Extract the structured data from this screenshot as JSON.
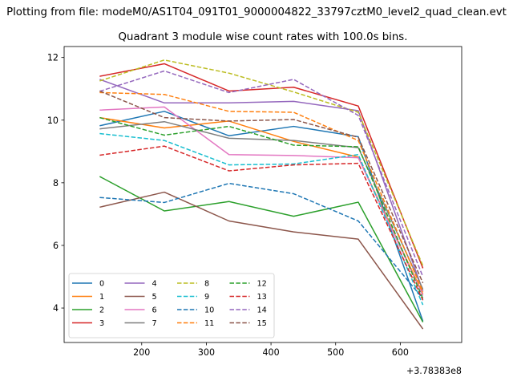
{
  "figure": {
    "suptitle": "Plotting from file: modeM0/AS1T04_091T01_9000004822_33797cztM0_level2_quad_clean.evt",
    "background": "#ffffff"
  },
  "chart_data": {
    "type": "line",
    "title": "Quadrant 3 module wise count rates with 100.0s bins.",
    "xlabel": "",
    "ylabel": "",
    "x_offset_label": "+3.78383e8",
    "x": [
      135,
      235,
      335,
      435,
      535,
      635
    ],
    "xlim": [
      80,
      695
    ],
    "ylim": [
      2.9,
      12.35
    ],
    "xticks": [
      200,
      300,
      400,
      500,
      600
    ],
    "yticks": [
      4,
      6,
      8,
      10,
      12
    ],
    "grid": false,
    "legend_position": "lower-left",
    "legend_columns": 4,
    "series": [
      {
        "name": "0",
        "color": "#1f77b4",
        "dash": "solid",
        "values": [
          9.82,
          10.28,
          9.5,
          9.8,
          9.47,
          3.58
        ]
      },
      {
        "name": "1",
        "color": "#ff7f0e",
        "dash": "solid",
        "values": [
          10.08,
          9.75,
          9.97,
          9.32,
          8.82,
          4.45
        ]
      },
      {
        "name": "2",
        "color": "#2ca02c",
        "dash": "solid",
        "values": [
          8.2,
          7.1,
          7.4,
          6.93,
          7.38,
          3.55
        ]
      },
      {
        "name": "3",
        "color": "#d62728",
        "dash": "solid",
        "values": [
          11.4,
          11.8,
          10.93,
          11.05,
          10.45,
          5.27
        ]
      },
      {
        "name": "4",
        "color": "#9467bd",
        "dash": "solid",
        "values": [
          11.3,
          10.55,
          10.55,
          10.6,
          10.3,
          4.55
        ]
      },
      {
        "name": "5",
        "color": "#8c564b",
        "dash": "solid",
        "values": [
          7.22,
          7.7,
          6.78,
          6.43,
          6.2,
          3.33
        ]
      },
      {
        "name": "6",
        "color": "#e377c2",
        "dash": "solid",
        "values": [
          10.32,
          10.42,
          8.9,
          8.87,
          8.8,
          4.4
        ]
      },
      {
        "name": "7",
        "color": "#7f7f7f",
        "dash": "solid",
        "values": [
          9.72,
          9.95,
          9.42,
          9.35,
          9.12,
          4.6
        ]
      },
      {
        "name": "8",
        "color": "#bcbd22",
        "dash": "dashed",
        "values": [
          11.25,
          11.92,
          11.5,
          10.9,
          10.25,
          5.35
        ]
      },
      {
        "name": "9",
        "color": "#17becf",
        "dash": "dashed",
        "values": [
          9.57,
          9.35,
          8.57,
          8.6,
          8.9,
          4.1
        ]
      },
      {
        "name": "10",
        "color": "#1f77b4",
        "dash": "dashed",
        "values": [
          7.53,
          7.37,
          7.98,
          7.65,
          6.78,
          4.3
        ]
      },
      {
        "name": "11",
        "color": "#ff7f0e",
        "dash": "dashed",
        "values": [
          10.88,
          10.82,
          10.28,
          10.25,
          9.35,
          4.52
        ]
      },
      {
        "name": "12",
        "color": "#2ca02c",
        "dash": "dashed",
        "values": [
          10.08,
          9.52,
          9.8,
          9.2,
          9.15,
          4.3
        ]
      },
      {
        "name": "13",
        "color": "#d62728",
        "dash": "dashed",
        "values": [
          8.88,
          9.17,
          8.38,
          8.57,
          8.62,
          4.25
        ]
      },
      {
        "name": "14",
        "color": "#9467bd",
        "dash": "dashed",
        "values": [
          10.92,
          11.57,
          10.88,
          11.3,
          10.15,
          5.0
        ]
      },
      {
        "name": "15",
        "color": "#8c564b",
        "dash": "dashed",
        "values": [
          10.93,
          10.08,
          9.97,
          10.02,
          9.45,
          4.8
        ]
      }
    ]
  }
}
